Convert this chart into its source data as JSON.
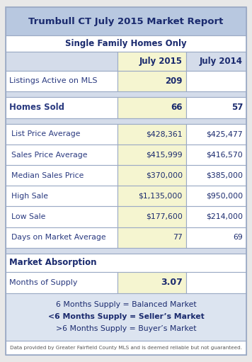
{
  "title": "Trumbull CT July 2015 Market Report",
  "subtitle": "Single Family Homes Only",
  "col_headers": [
    "",
    "July 2015",
    "July 2014"
  ],
  "rows": [
    {
      "label": "Listings Active on MLS",
      "val2015": "209",
      "val2014": "",
      "bold_label": false
    },
    {
      "label": "Homes Sold",
      "val2015": "66",
      "val2014": "57",
      "bold_label": true
    },
    {
      "label": "List Price Average",
      "val2015": "$428,361",
      "val2014": "$425,477",
      "bold_label": false
    },
    {
      "label": "Sales Price Average",
      "val2015": "$415,999",
      "val2014": "$416,570",
      "bold_label": false
    },
    {
      "label": "Median Sales Price",
      "val2015": "$370,000",
      "val2014": "$385,000",
      "bold_label": false
    },
    {
      "label": "High Sale",
      "val2015": "$1,135,000",
      "val2014": "$950,000",
      "bold_label": false
    },
    {
      "label": "Low Sale",
      "val2015": "$177,600",
      "val2014": "$214,000",
      "bold_label": false
    },
    {
      "label": "Days on Market Average",
      "val2015": "77",
      "val2014": "69",
      "bold_label": false
    }
  ],
  "absorption_label": "Market Absorption",
  "months_label": "Months of Supply",
  "months_val": "3.07",
  "supply_lines": [
    {
      "text": "6 Months Supply = Balanced Market",
      "bold": false
    },
    {
      "text": "<6 Months Supply = Seller’s Market",
      "bold": true
    },
    {
      "text": ">6 Months Supply = Buyer’s Market",
      "bold": false
    }
  ],
  "footer": "Data provided by Greater Fairfield County MLS and is deemed reliable but not guaranteed.",
  "title_bg": "#b8c8e0",
  "subtitle_bg": "#ffffff",
  "header_bg": "#d4dcea",
  "highlight_bg": "#f5f5d0",
  "normal_bg": "#ffffff",
  "supply_bg": "#dce4f0",
  "border_color": "#9BAAC5",
  "title_color": "#1a2a6e",
  "label_color": "#2a3a80",
  "value_color": "#1a2a6e",
  "footer_color": "#555555",
  "outer_bg": "#e8e8e8"
}
